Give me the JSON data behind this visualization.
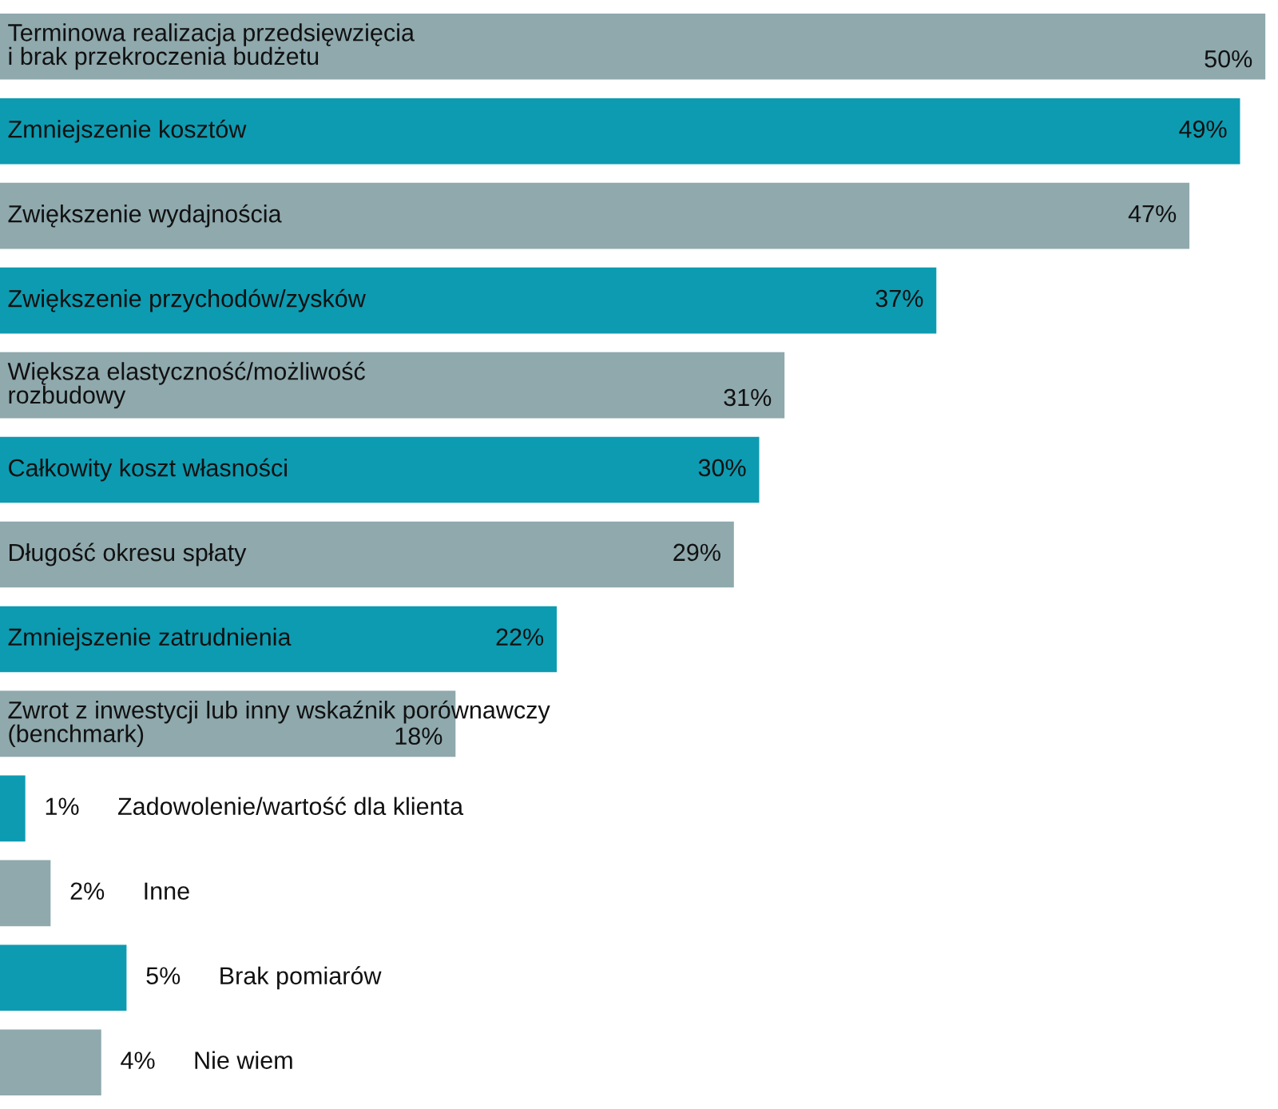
{
  "chart_data": {
    "type": "bar",
    "orientation": "horizontal",
    "categories": [
      "Terminowa realizacja przedsięwzięcia\ni brak przekroczenia budżetu",
      "Zmniejszenie kosztów",
      "Zwiększenie wydajnościa",
      "Zwiększenie przychodów/zysków",
      "Większa elastyczność/możliwość\nrozbudowy",
      "Całkowity koszt własności",
      "Długość okresu spłaty",
      "Zmniejszenie zatrudnienia",
      "Zwrot z inwestycji lub inny wskaźnik porównawczy\n(benchmark)",
      "Zadowolenie/wartość dla klienta",
      "Inne",
      "Brak pomiarów",
      "Nie wiem"
    ],
    "values": [
      50,
      49,
      47,
      37,
      31,
      30,
      29,
      22,
      18,
      1,
      2,
      5,
      4
    ],
    "colors": [
      "#8fa9ad",
      "#0d9bb1",
      "#8fa9ad",
      "#0d9bb1",
      "#8fa9ad",
      "#0d9bb1",
      "#8fa9ad",
      "#0d9bb1",
      "#8fa9ad",
      "#0d9bb1",
      "#8fa9ad",
      "#0d9bb1",
      "#8fa9ad"
    ],
    "value_labels": [
      "50%",
      "49%",
      "47%",
      "37%",
      "31%",
      "30%",
      "29%",
      "22%",
      "18%",
      "1%",
      "2%",
      "5%",
      "4%"
    ],
    "legend": false
  }
}
